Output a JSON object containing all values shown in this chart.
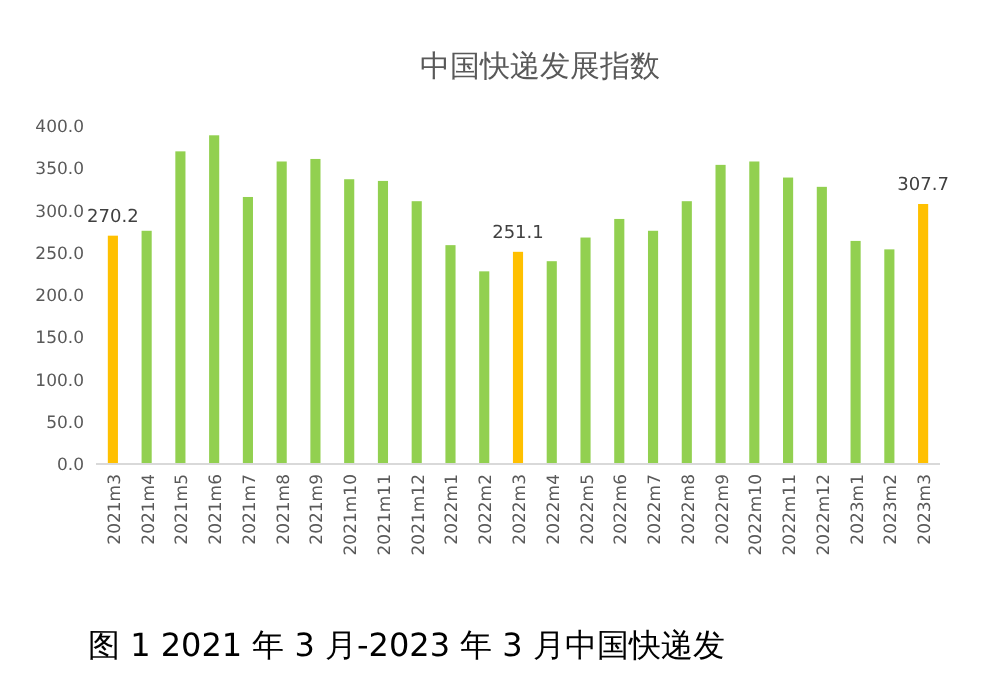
{
  "chart_data": {
    "type": "bar",
    "title": "中国快递发展指数",
    "categories": [
      "2021m3",
      "2021m4",
      "2021m5",
      "2021m6",
      "2021m7",
      "2021m8",
      "2021m9",
      "2021m10",
      "2021m11",
      "2021m12",
      "2022m1",
      "2022m2",
      "2022m3",
      "2022m4",
      "2022m5",
      "2022m6",
      "2022m7",
      "2022m8",
      "2022m9",
      "2022m10",
      "2022m11",
      "2022m12",
      "2023m1",
      "2023m2",
      "2023m3"
    ],
    "values": [
      270.2,
      276,
      370,
      389,
      316,
      358,
      361,
      337,
      335,
      311,
      259,
      228,
      251.1,
      240,
      268,
      290,
      276,
      311,
      354,
      358,
      339,
      328,
      264,
      254,
      307.7
    ],
    "colors": [
      "#ffc000",
      "#92d050",
      "#92d050",
      "#92d050",
      "#92d050",
      "#92d050",
      "#92d050",
      "#92d050",
      "#92d050",
      "#92d050",
      "#92d050",
      "#92d050",
      "#ffc000",
      "#92d050",
      "#92d050",
      "#92d050",
      "#92d050",
      "#92d050",
      "#92d050",
      "#92d050",
      "#92d050",
      "#92d050",
      "#92d050",
      "#92d050",
      "#ffc000"
    ],
    "value_labels": [
      "270.2",
      null,
      null,
      null,
      null,
      null,
      null,
      null,
      null,
      null,
      null,
      null,
      "251.1",
      null,
      null,
      null,
      null,
      null,
      null,
      null,
      null,
      null,
      null,
      null,
      "307.7"
    ],
    "ylim": [
      0,
      400
    ],
    "yticks": [
      {
        "value": 0,
        "label": "0.0"
      },
      {
        "value": 50,
        "label": "50.0"
      },
      {
        "value": 100,
        "label": "100.0"
      },
      {
        "value": 150,
        "label": "150.0"
      },
      {
        "value": 200,
        "label": "200.0"
      },
      {
        "value": 250,
        "label": "250.0"
      },
      {
        "value": 300,
        "label": "300.0"
      },
      {
        "value": 350,
        "label": "350.0"
      },
      {
        "value": 400,
        "label": "400.0"
      }
    ],
    "grid": false,
    "annotations": [
      "图 1 2021 年 3 月-2023 年 3 月中国快递发"
    ]
  }
}
